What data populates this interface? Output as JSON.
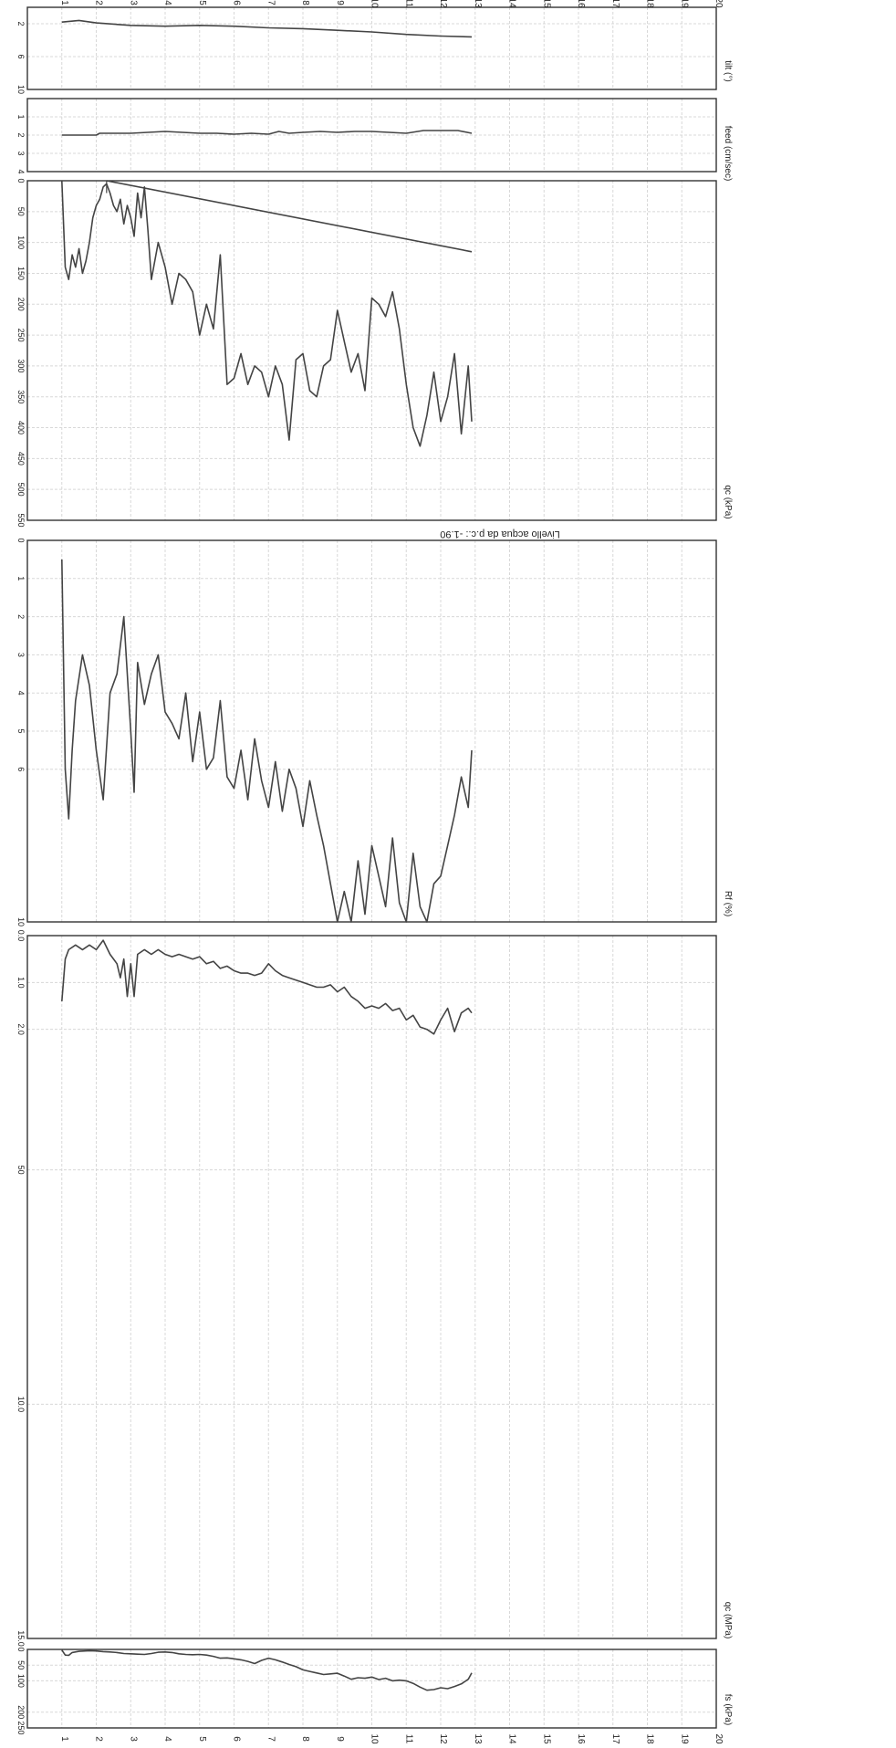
{
  "chart_data": [
    {
      "type": "line",
      "xlabel": "fs (kPa)",
      "ticks": [
        "0",
        "50",
        "100",
        "200",
        "250"
      ],
      "ylim": [
        0,
        250
      ],
      "depth_ticks": [
        1,
        2,
        3,
        4,
        5,
        6,
        7,
        8,
        9,
        10,
        11,
        12,
        13,
        14,
        15,
        16,
        17,
        18,
        19,
        20
      ],
      "series": [
        {
          "x": [
            1.0,
            1.1,
            1.2,
            1.3,
            1.5,
            1.8,
            2.0,
            2.2,
            2.4,
            2.6,
            2.8,
            3.0,
            3.2,
            3.4,
            3.6,
            3.8,
            4.0,
            4.2,
            4.4,
            4.6,
            4.8,
            5.0,
            5.2,
            5.4,
            5.6,
            5.8,
            6.0,
            6.2,
            6.4,
            6.6,
            6.8,
            7.0,
            7.2,
            7.4,
            7.6,
            7.8,
            8.0,
            8.2,
            8.4,
            8.6,
            8.8,
            9.0,
            9.2,
            9.4,
            9.6,
            9.8,
            10.0,
            10.2,
            10.4,
            10.6,
            10.8,
            11.0,
            11.2,
            11.4,
            11.6,
            11.8,
            12.0,
            12.2,
            12.4,
            12.6,
            12.8,
            12.9
          ],
          "y": [
            2,
            18,
            19,
            10,
            6,
            4,
            5,
            7,
            8,
            10,
            13,
            14,
            15,
            16,
            13,
            9,
            8,
            10,
            14,
            16,
            17,
            16,
            18,
            22,
            28,
            27,
            30,
            33,
            38,
            45,
            35,
            28,
            33,
            40,
            48,
            55,
            65,
            70,
            75,
            80,
            78,
            76,
            85,
            95,
            90,
            92,
            88,
            96,
            92,
            100,
            98,
            100,
            108,
            120,
            130,
            128,
            122,
            125,
            118,
            110,
            95,
            75
          ]
        }
      ]
    },
    {
      "type": "line",
      "xlabel": "qc (MPa)",
      "ticks": [
        "0.0",
        "1.0",
        "2.0",
        "50",
        "10.0",
        "15.0"
      ],
      "ylim": [
        0,
        15
      ],
      "depth_ticks": [
        1,
        2,
        3,
        4,
        5,
        6,
        7,
        8,
        9,
        10,
        11,
        12,
        13,
        14,
        15,
        16,
        17,
        18,
        19,
        20
      ],
      "series": [
        {
          "x": [
            1.0,
            1.1,
            1.2,
            1.4,
            1.6,
            1.8,
            2.0,
            2.2,
            2.4,
            2.6,
            2.7,
            2.8,
            2.9,
            3.0,
            3.1,
            3.2,
            3.4,
            3.6,
            3.8,
            4.0,
            4.2,
            4.4,
            4.6,
            4.8,
            5.0,
            5.2,
            5.4,
            5.6,
            5.8,
            6.0,
            6.2,
            6.4,
            6.6,
            6.8,
            7.0,
            7.2,
            7.4,
            7.6,
            7.8,
            8.0,
            8.2,
            8.4,
            8.6,
            8.8,
            9.0,
            9.2,
            9.4,
            9.6,
            9.8,
            10.0,
            10.2,
            10.4,
            10.6,
            10.8,
            11.0,
            11.2,
            11.4,
            11.6,
            11.8,
            12.0,
            12.2,
            12.4,
            12.6,
            12.8,
            12.9
          ],
          "y": [
            1.4,
            0.5,
            0.3,
            0.2,
            0.3,
            0.2,
            0.3,
            0.1,
            0.4,
            0.6,
            0.9,
            0.5,
            1.3,
            0.6,
            1.3,
            0.4,
            0.3,
            0.4,
            0.3,
            0.4,
            0.45,
            0.4,
            0.45,
            0.5,
            0.45,
            0.6,
            0.55,
            0.7,
            0.65,
            0.75,
            0.8,
            0.8,
            0.85,
            0.8,
            0.6,
            0.75,
            0.85,
            0.9,
            0.95,
            1.0,
            1.05,
            1.1,
            1.1,
            1.05,
            1.2,
            1.1,
            1.3,
            1.4,
            1.55,
            1.5,
            1.55,
            1.45,
            1.6,
            1.55,
            1.8,
            1.7,
            1.95,
            2.0,
            2.1,
            1.8,
            1.55,
            2.05,
            1.65,
            1.55,
            1.65
          ]
        }
      ]
    },
    {
      "type": "line",
      "xlabel": "Rf (%)",
      "ticks": [
        "0",
        "1",
        "2",
        "3",
        "4",
        "5",
        "6",
        "10"
      ],
      "ylim": [
        0,
        10
      ],
      "depth_ticks": [
        1,
        2,
        3,
        4,
        5,
        6,
        7,
        8,
        9,
        10,
        11,
        12,
        13,
        14,
        15,
        16,
        17,
        18,
        19,
        20
      ],
      "series": [
        {
          "x": [
            1.0,
            1.1,
            1.2,
            1.3,
            1.4,
            1.6,
            1.8,
            2.0,
            2.2,
            2.4,
            2.6,
            2.8,
            3.0,
            3.1,
            3.2,
            3.4,
            3.6,
            3.8,
            4.0,
            4.2,
            4.4,
            4.6,
            4.8,
            5.0,
            5.2,
            5.4,
            5.6,
            5.8,
            6.0,
            6.2,
            6.4,
            6.6,
            6.8,
            7.0,
            7.2,
            7.4,
            7.6,
            7.8,
            8.0,
            8.2,
            8.4,
            8.6,
            8.8,
            9.0,
            9.2,
            9.4,
            9.6,
            9.8,
            10.0,
            10.2,
            10.4,
            10.6,
            10.8,
            11.0,
            11.2,
            11.4,
            11.6,
            11.8,
            12.0,
            12.2,
            12.4,
            12.6,
            12.8,
            12.9
          ],
          "y": [
            0.5,
            6.0,
            7.3,
            5.5,
            4.2,
            3.0,
            3.8,
            5.5,
            6.8,
            4.0,
            3.5,
            2.0,
            5.0,
            6.6,
            3.2,
            4.3,
            3.5,
            3.0,
            4.5,
            4.8,
            5.2,
            4.0,
            5.8,
            4.5,
            6.0,
            5.7,
            4.2,
            6.2,
            6.5,
            5.5,
            6.8,
            5.2,
            6.3,
            7.0,
            5.8,
            7.1,
            6.0,
            6.5,
            7.5,
            6.3,
            7.2,
            8.0,
            9.0,
            10.0,
            9.2,
            10.0,
            8.4,
            9.8,
            8.0,
            8.8,
            9.6,
            7.8,
            9.5,
            10.0,
            8.2,
            9.6,
            10.0,
            9.0,
            8.8,
            8.0,
            7.2,
            6.2,
            7.0,
            5.5
          ]
        }
      ]
    },
    {
      "type": "line",
      "xlabel": "qc (kPa)",
      "annotation": "Livello acqua da p.c.: -1.90",
      "ticks": [
        "0",
        "50",
        "100",
        "150",
        "200",
        "250",
        "300",
        "350",
        "400",
        "450",
        "500",
        "550"
      ],
      "ylim": [
        0,
        550
      ],
      "depth_ticks": [
        1,
        2,
        3,
        4,
        5,
        6,
        7,
        8,
        9,
        10,
        11,
        12,
        13,
        14,
        15,
        16,
        17,
        18,
        19,
        20
      ],
      "series": [
        {
          "name": "",
          "x": [
            1.0,
            1.1,
            1.2,
            1.3,
            1.4,
            1.5,
            1.6,
            1.7,
            1.8,
            1.9,
            2.0,
            2.1,
            2.2,
            2.3,
            2.4,
            2.5,
            2.6,
            2.7,
            2.8,
            2.9,
            3.0,
            3.1,
            3.2,
            3.3,
            3.4,
            3.5,
            3.6,
            3.8,
            4.0,
            4.2,
            4.4,
            4.6,
            4.8,
            5.0,
            5.2,
            5.4,
            5.6,
            5.8,
            6.0,
            6.2,
            6.4,
            6.6,
            6.8,
            7.0,
            7.2,
            7.4,
            7.6,
            7.8,
            8.0,
            8.2,
            8.4,
            8.6,
            8.8,
            9.0,
            9.2,
            9.4,
            9.6,
            9.8,
            10.0,
            10.2,
            10.4,
            10.6,
            10.8,
            11.0,
            11.2,
            11.4,
            11.6,
            11.8,
            12.0,
            12.2,
            12.4,
            12.6,
            12.8,
            12.9
          ],
          "y": [
            0,
            140,
            160,
            120,
            140,
            110,
            150,
            130,
            100,
            60,
            40,
            30,
            10,
            5,
            20,
            40,
            50,
            30,
            70,
            40,
            60,
            90,
            20,
            60,
            10,
            80,
            160,
            100,
            140,
            200,
            150,
            160,
            180,
            250,
            200,
            240,
            120,
            330,
            320,
            280,
            330,
            300,
            310,
            350,
            300,
            330,
            420,
            290,
            280,
            340,
            350,
            300,
            290,
            210,
            260,
            310,
            280,
            340,
            190,
            200,
            220,
            180,
            240,
            330,
            400,
            430,
            380,
            310,
            390,
            350,
            280,
            410,
            300,
            390
          ]
        },
        {
          "name": "",
          "x": [
            2.3,
            12.9
          ],
          "y": [
            0,
            115
          ]
        }
      ]
    },
    {
      "type": "line",
      "xlabel": "feed (cm/sec)",
      "ticks": [
        "1",
        "2",
        "3",
        "4"
      ],
      "ylim": [
        0,
        4
      ],
      "depth_ticks": [
        1,
        2,
        3,
        4,
        5,
        6,
        7,
        8,
        9,
        10,
        11,
        12,
        13,
        14,
        15,
        16,
        17,
        18,
        19,
        20
      ],
      "series": [
        {
          "x": [
            1.0,
            1.5,
            2.0,
            2.1,
            2.5,
            3.0,
            3.5,
            4.0,
            4.5,
            5.0,
            5.5,
            6.0,
            6.5,
            7.0,
            7.3,
            7.6,
            8.0,
            8.5,
            9.0,
            9.5,
            10.0,
            10.5,
            11.0,
            11.5,
            12.0,
            12.5,
            12.9
          ],
          "y": [
            2.0,
            2.0,
            2.0,
            1.9,
            1.9,
            1.9,
            1.85,
            1.8,
            1.85,
            1.9,
            1.9,
            1.95,
            1.9,
            1.95,
            1.8,
            1.9,
            1.85,
            1.8,
            1.85,
            1.8,
            1.8,
            1.85,
            1.9,
            1.75,
            1.75,
            1.75,
            1.9
          ]
        }
      ]
    },
    {
      "type": "line",
      "xlabel": "tilt (°)",
      "ticks": [
        "2",
        "6",
        "10"
      ],
      "ylim": [
        0,
        10
      ],
      "depth_ticks": [
        1,
        2,
        3,
        4,
        5,
        6,
        7,
        8,
        9,
        10,
        11,
        12,
        13,
        14,
        15,
        16,
        17,
        18,
        19,
        20
      ],
      "series": [
        {
          "x": [
            1.0,
            1.5,
            2.0,
            3.0,
            4.0,
            5.0,
            6.0,
            7.0,
            8.0,
            9.0,
            10.0,
            11.0,
            12.0,
            12.9
          ],
          "y": [
            1.8,
            1.6,
            1.9,
            2.2,
            2.3,
            2.2,
            2.3,
            2.5,
            2.6,
            2.8,
            3.0,
            3.3,
            3.5,
            3.6
          ]
        }
      ]
    }
  ]
}
